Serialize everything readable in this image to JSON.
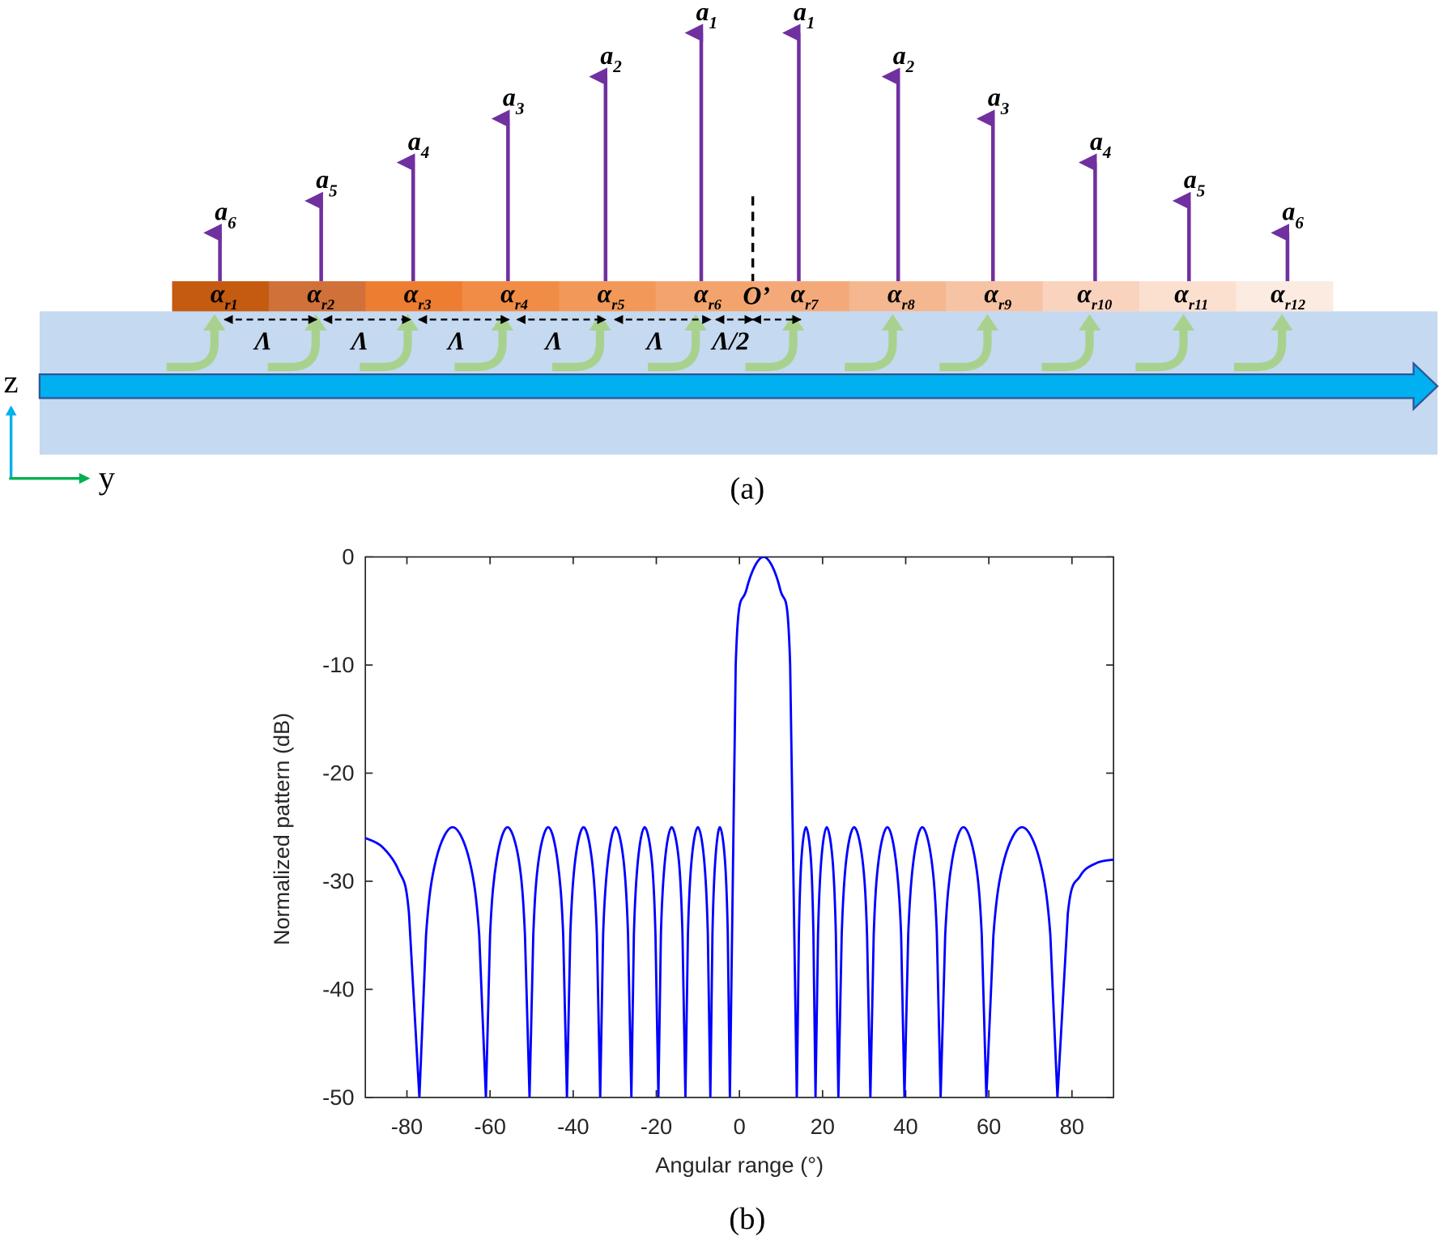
{
  "diagram": {
    "top_labels": [
      {
        "base": "a",
        "sub": "6"
      },
      {
        "base": "a",
        "sub": "5"
      },
      {
        "base": "a",
        "sub": "4"
      },
      {
        "base": "a",
        "sub": "3"
      },
      {
        "base": "a",
        "sub": "2"
      },
      {
        "base": "a",
        "sub": "1"
      },
      {
        "base": "a",
        "sub": "1"
      },
      {
        "base": "a",
        "sub": "2"
      },
      {
        "base": "a",
        "sub": "3"
      },
      {
        "base": "a",
        "sub": "4"
      },
      {
        "base": "a",
        "sub": "5"
      },
      {
        "base": "a",
        "sub": "6"
      }
    ],
    "block_labels": [
      {
        "base": "α",
        "sub": "r1"
      },
      {
        "base": "α",
        "sub": "r2"
      },
      {
        "base": "α",
        "sub": "r3"
      },
      {
        "base": "α",
        "sub": "r4"
      },
      {
        "base": "α",
        "sub": "r5"
      },
      {
        "base": "α",
        "sub": "r6"
      },
      {
        "base": "α",
        "sub": "r7"
      },
      {
        "base": "α",
        "sub": "r8"
      },
      {
        "base": "α",
        "sub": "r9"
      },
      {
        "base": "α",
        "sub": "r10"
      },
      {
        "base": "α",
        "sub": "r11"
      },
      {
        "base": "α",
        "sub": "r12"
      }
    ],
    "spacing_labels": [
      "Λ",
      "Λ",
      "Λ",
      "Λ",
      "Λ",
      "Λ/2"
    ],
    "origin_label": "O’",
    "axis_z": "z",
    "axis_y": "y",
    "caption": "(a)"
  },
  "chart_data": {
    "type": "line",
    "caption": "(b)",
    "xlabel": "Angular range (°)",
    "ylabel": "Normalized pattern (dB)",
    "xlim": [
      -90,
      90
    ],
    "ylim": [
      -50,
      0
    ],
    "xticks": [
      -80,
      -60,
      -40,
      -20,
      0,
      20,
      40,
      60,
      80
    ],
    "yticks": [
      0,
      -10,
      -20,
      -30,
      -40,
      -50
    ],
    "series": [
      {
        "color": "#0000ff",
        "x": [
          -90,
          -86,
          -82,
          -79.5,
          -77,
          -75.4,
          -73,
          -69,
          -65,
          -62.6,
          -61,
          -60,
          -58.4,
          -55.8,
          -53.1,
          -51.6,
          -50.5,
          -49.6,
          -48.3,
          -46,
          -43.8,
          -42.4,
          -41.5,
          -40.7,
          -39.5,
          -37.5,
          -35.5,
          -34.3,
          -33.5,
          -32.8,
          -31.6,
          -29.8,
          -27.9,
          -26.8,
          -26,
          -25.4,
          -24.4,
          -22.8,
          -21.1,
          -20.2,
          -19.5,
          -18.9,
          -17.9,
          -16.3,
          -14.6,
          -13.7,
          -13,
          -12.4,
          -11.5,
          -10,
          -8.5,
          -7.6,
          -7,
          -6.5,
          -5.8,
          -4.7,
          -3.5,
          -2.8,
          -2.3,
          -0.9,
          1.7,
          5.8,
          9.8,
          12.2,
          13.8,
          14.3,
          14.9,
          16,
          17.2,
          17.8,
          18.3,
          18.9,
          19.7,
          21,
          22.4,
          23.2,
          23.8,
          24.6,
          25.7,
          27.6,
          29.6,
          30.7,
          31.5,
          32.3,
          33.5,
          35.6,
          37.6,
          38.9,
          39.7,
          40.6,
          41.9,
          44,
          46.2,
          47.5,
          48.4,
          49.5,
          51.2,
          53.9,
          56.7,
          58.3,
          59.4,
          61.1,
          63.7,
          68,
          72.2,
          74.8,
          76.5,
          79,
          82,
          86,
          90
        ],
        "values": [
          -26,
          -26.8,
          -29,
          -33,
          -50,
          -35,
          -28,
          -25,
          -28,
          -35,
          -50,
          -35,
          -28,
          -25,
          -28,
          -35,
          -50,
          -35,
          -28,
          -25,
          -28,
          -35,
          -50,
          -35,
          -28,
          -25,
          -28,
          -35,
          -50,
          -35,
          -28,
          -25,
          -28,
          -35,
          -50,
          -35,
          -28,
          -25,
          -28,
          -35,
          -50,
          -35,
          -28,
          -25,
          -28,
          -35,
          -50,
          -35,
          -28,
          -25,
          -28,
          -35,
          -50,
          -35,
          -28,
          -25,
          -28,
          -35,
          -50,
          -10,
          -3,
          0,
          -3,
          -10,
          -50,
          -35,
          -28,
          -25,
          -28,
          -35,
          -50,
          -35,
          -28,
          -25,
          -28,
          -35,
          -50,
          -35,
          -28,
          -25,
          -28,
          -35,
          -50,
          -35,
          -28,
          -25,
          -28,
          -35,
          -50,
          -35,
          -28,
          -25,
          -28,
          -35,
          -50,
          -35,
          -28,
          -25,
          -28,
          -35,
          -50,
          -35,
          -28,
          -25,
          -28,
          -35,
          -50,
          -33,
          -29.5,
          -28.3,
          -28
        ]
      }
    ]
  }
}
